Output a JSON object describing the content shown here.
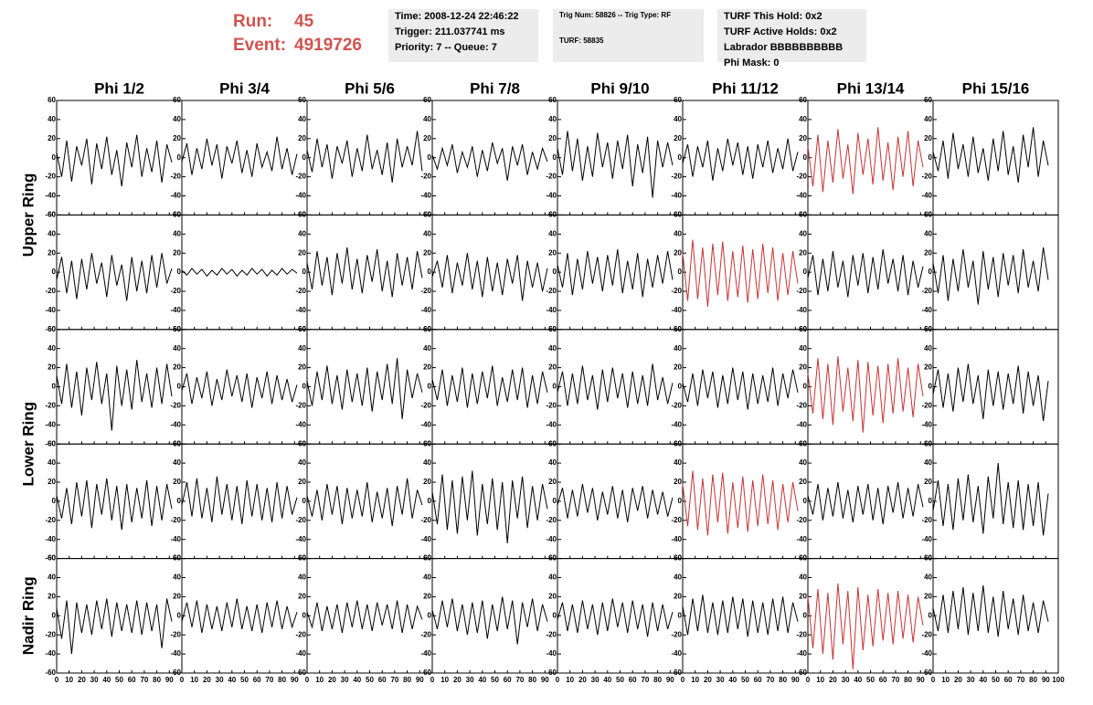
{
  "header": {
    "run_label": "Run:",
    "run": "45",
    "event_label": "Event:",
    "event": "4919726"
  },
  "info_boxes": [
    [
      "Time: 2008-12-24 22:46:22",
      "Trigger: 211.037741 ms",
      "Priority: 7 -- Queue: 7"
    ],
    [
      "Trig Num: 58826 -- Trig Type: RF",
      "TURF: 58835"
    ],
    [
      "TURF This Hold: 0x2",
      "TURF Active Holds: 0x2",
      "Labrador BBBBBBBBBB",
      "Phi Mask: 0"
    ]
  ],
  "chart_data": {
    "type": "line",
    "columns": [
      "Phi 1/2",
      "Phi 3/4",
      "Phi 5/6",
      "Phi 7/8",
      "Phi 9/10",
      "Phi 11/12",
      "Phi 13/14",
      "Phi 15/16"
    ],
    "ring_labels": [
      "Upper Ring",
      "Lower Ring",
      "Nadir Ring"
    ],
    "xlim": [
      0,
      100
    ],
    "xticks": [
      0,
      10,
      20,
      30,
      40,
      50,
      60,
      70,
      80,
      90,
      100
    ],
    "ylim": [
      -60,
      60
    ],
    "yticks": [
      -60,
      -40,
      -20,
      0,
      20,
      40,
      60
    ],
    "x": [
      0,
      4,
      8,
      12,
      16,
      20,
      24,
      28,
      32,
      36,
      40,
      44,
      48,
      52,
      56,
      60,
      64,
      68,
      72,
      76,
      80,
      84,
      88,
      92
    ],
    "panels": [
      {
        "color": "#000000",
        "values": [
          5,
          -20,
          18,
          -25,
          12,
          -8,
          20,
          -28,
          15,
          -12,
          22,
          -18,
          8,
          -30,
          16,
          -10,
          24,
          -20,
          10,
          -15,
          18,
          -26,
          14,
          -5
        ]
      },
      {
        "color": "#000000",
        "values": [
          -4,
          15,
          -18,
          10,
          -12,
          20,
          -8,
          14,
          -22,
          12,
          -6,
          18,
          -16,
          8,
          -20,
          15,
          -10,
          6,
          -14,
          22,
          -12,
          10,
          -18,
          4
        ]
      },
      {
        "color": "#000000",
        "values": [
          8,
          -15,
          20,
          -10,
          14,
          -22,
          12,
          -6,
          18,
          -20,
          10,
          -14,
          24,
          -12,
          8,
          -18,
          16,
          -26,
          20,
          -10,
          12,
          -8,
          28,
          -14
        ]
      },
      {
        "color": "#000000",
        "values": [
          3,
          -12,
          10,
          -8,
          14,
          -16,
          6,
          -10,
          12,
          -20,
          8,
          -14,
          16,
          -6,
          10,
          -24,
          12,
          -8,
          14,
          -18,
          6,
          -12,
          10,
          -4
        ]
      },
      {
        "color": "#000000",
        "values": [
          10,
          -18,
          28,
          -14,
          20,
          -24,
          12,
          -20,
          26,
          -10,
          16,
          -22,
          18,
          -12,
          24,
          -30,
          14,
          -16,
          22,
          -42,
          18,
          -10,
          16,
          -8
        ]
      },
      {
        "color": "#000000",
        "values": [
          -6,
          14,
          -20,
          12,
          -10,
          18,
          -24,
          10,
          -14,
          20,
          -8,
          16,
          -18,
          12,
          -22,
          14,
          -10,
          18,
          -16,
          10,
          -12,
          20,
          -14,
          6
        ]
      },
      {
        "color": "#c83232",
        "values": [
          12,
          -30,
          24,
          -36,
          18,
          -26,
          30,
          -22,
          14,
          -38,
          26,
          -18,
          20,
          -28,
          32,
          -24,
          16,
          -34,
          22,
          -20,
          28,
          -30,
          18,
          -10
        ]
      },
      {
        "color": "#000000",
        "values": [
          6,
          -14,
          18,
          -22,
          26,
          -12,
          14,
          -20,
          22,
          -16,
          10,
          -24,
          20,
          -14,
          28,
          -18,
          12,
          -26,
          24,
          -10,
          32,
          -20,
          18,
          -8
        ]
      },
      {
        "color": "#000000",
        "values": [
          -8,
          16,
          -22,
          12,
          -28,
          14,
          -18,
          20,
          -12,
          10,
          -26,
          18,
          -14,
          8,
          -30,
          16,
          -20,
          12,
          -22,
          18,
          -16,
          20,
          -12,
          4
        ]
      },
      {
        "color": "#000000",
        "values": [
          2,
          -3,
          4,
          -2,
          3,
          -4,
          2,
          -3,
          4,
          -2,
          3,
          -4,
          2,
          -3,
          4,
          -2,
          3,
          -4,
          2,
          -3,
          4,
          -2,
          3,
          -1
        ]
      },
      {
        "color": "#000000",
        "values": [
          10,
          -18,
          22,
          -14,
          16,
          -24,
          20,
          -12,
          26,
          -18,
          14,
          -22,
          18,
          -10,
          24,
          -20,
          12,
          -26,
          20,
          -14,
          16,
          -18,
          22,
          -6
        ]
      },
      {
        "color": "#000000",
        "values": [
          -5,
          12,
          -16,
          18,
          -22,
          10,
          -14,
          20,
          -18,
          12,
          -26,
          16,
          -20,
          10,
          -24,
          14,
          -12,
          18,
          -30,
          12,
          -16,
          10,
          -20,
          4
        ]
      },
      {
        "color": "#000000",
        "values": [
          8,
          -16,
          20,
          -24,
          14,
          -18,
          22,
          -12,
          16,
          -20,
          18,
          -14,
          24,
          -22,
          12,
          -18,
          20,
          -26,
          14,
          -16,
          18,
          -12,
          22,
          -8
        ]
      },
      {
        "color": "#c83232",
        "values": [
          20,
          -30,
          34,
          -28,
          26,
          -36,
          30,
          -24,
          32,
          -30,
          22,
          -26,
          28,
          -32,
          24,
          -28,
          30,
          -22,
          26,
          -30,
          20,
          -24,
          22,
          -12
        ]
      },
      {
        "color": "#000000",
        "values": [
          -6,
          18,
          -24,
          14,
          -20,
          22,
          -16,
          12,
          -26,
          18,
          -14,
          20,
          -22,
          16,
          -18,
          24,
          -12,
          14,
          -20,
          18,
          -24,
          12,
          -16,
          6
        ]
      },
      {
        "color": "#000000",
        "values": [
          10,
          -22,
          18,
          -30,
          14,
          -20,
          24,
          -16,
          12,
          -34,
          22,
          -18,
          16,
          -26,
          20,
          -14,
          18,
          -22,
          24,
          -16,
          12,
          -20,
          26,
          -8
        ]
      },
      {
        "color": "#000000",
        "values": [
          12,
          -18,
          24,
          -22,
          16,
          -30,
          20,
          -14,
          26,
          -18,
          14,
          -46,
          22,
          -20,
          18,
          -24,
          28,
          -16,
          14,
          -22,
          20,
          -18,
          24,
          -10
        ]
      },
      {
        "color": "#000000",
        "values": [
          -4,
          14,
          -18,
          10,
          -12,
          16,
          -20,
          8,
          -14,
          18,
          -10,
          12,
          -16,
          14,
          -22,
          10,
          -12,
          16,
          -18,
          12,
          -14,
          8,
          -16,
          2
        ]
      },
      {
        "color": "#000000",
        "values": [
          6,
          -20,
          16,
          -14,
          22,
          -18,
          12,
          -24,
          18,
          -16,
          14,
          -20,
          20,
          -26,
          16,
          -14,
          24,
          -18,
          30,
          -34,
          18,
          -12,
          14,
          -6
        ]
      },
      {
        "color": "#000000",
        "values": [
          8,
          -14,
          18,
          -20,
          12,
          -16,
          20,
          -22,
          14,
          -18,
          16,
          -12,
          22,
          -20,
          10,
          -16,
          18,
          -14,
          20,
          -22,
          12,
          -18,
          16,
          -6
        ]
      },
      {
        "color": "#000000",
        "values": [
          -6,
          16,
          -20,
          14,
          -18,
          22,
          -14,
          12,
          -24,
          18,
          -16,
          20,
          -12,
          14,
          -22,
          16,
          -18,
          12,
          -20,
          24,
          -14,
          10,
          -18,
          4
        ]
      },
      {
        "color": "#000000",
        "values": [
          4,
          -16,
          14,
          -20,
          18,
          -12,
          16,
          -22,
          12,
          -18,
          20,
          -14,
          16,
          -24,
          14,
          -18,
          12,
          -16,
          20,
          -20,
          14,
          -12,
          18,
          -6
        ]
      },
      {
        "color": "#c83232",
        "values": [
          14,
          -28,
          30,
          -34,
          24,
          -40,
          32,
          -26,
          20,
          -36,
          28,
          -48,
          26,
          -30,
          22,
          -38,
          24,
          -28,
          30,
          -26,
          20,
          -32,
          24,
          -10
        ]
      },
      {
        "color": "#000000",
        "values": [
          -8,
          18,
          -22,
          14,
          -26,
          20,
          -16,
          24,
          -18,
          12,
          -34,
          18,
          -20,
          16,
          -24,
          14,
          -18,
          22,
          -28,
          16,
          -20,
          12,
          -36,
          6
        ]
      },
      {
        "color": "#000000",
        "values": [
          6,
          -18,
          14,
          -24,
          20,
          -16,
          22,
          -28,
          18,
          -14,
          24,
          -20,
          16,
          -30,
          18,
          -22,
          14,
          -18,
          22,
          -26,
          16,
          -20,
          18,
          -8
        ]
      },
      {
        "color": "#000000",
        "values": [
          -4,
          20,
          -16,
          24,
          -18,
          14,
          -22,
          26,
          -14,
          18,
          -20,
          16,
          -24,
          22,
          -16,
          18,
          -20,
          14,
          -22,
          20,
          -18,
          16,
          -14,
          4
        ]
      },
      {
        "color": "#000000",
        "values": [
          6,
          -16,
          12,
          -20,
          18,
          -14,
          16,
          -24,
          14,
          -18,
          12,
          -16,
          20,
          -22,
          10,
          -18,
          14,
          -26,
          16,
          -14,
          24,
          -18,
          12,
          -4
        ]
      },
      {
        "color": "#000000",
        "values": [
          10,
          -24,
          28,
          -30,
          22,
          -34,
          26,
          -20,
          32,
          -36,
          18,
          -24,
          24,
          -30,
          20,
          -44,
          22,
          -18,
          26,
          -28,
          16,
          -20,
          18,
          -8
        ]
      },
      {
        "color": "#000000",
        "values": [
          -4,
          14,
          -18,
          12,
          -16,
          18,
          -12,
          14,
          -20,
          10,
          -14,
          16,
          -18,
          12,
          -22,
          14,
          -10,
          16,
          -18,
          12,
          -14,
          10,
          -16,
          4
        ]
      },
      {
        "color": "#c83232",
        "values": [
          18,
          -26,
          32,
          -30,
          24,
          -36,
          28,
          -22,
          30,
          -34,
          20,
          -28,
          26,
          -32,
          22,
          -26,
          28,
          -24,
          22,
          -30,
          18,
          -22,
          20,
          -10
        ]
      },
      {
        "color": "#000000",
        "values": [
          6,
          -14,
          18,
          -20,
          14,
          -16,
          20,
          -18,
          12,
          -22,
          16,
          -14,
          18,
          -20,
          14,
          -24,
          16,
          -12,
          20,
          -18,
          14,
          -16,
          18,
          -6
        ]
      },
      {
        "color": "#000000",
        "values": [
          -10,
          22,
          -26,
          18,
          -30,
          24,
          -20,
          28,
          -22,
          16,
          -34,
          26,
          -18,
          40,
          -24,
          20,
          -28,
          22,
          -30,
          18,
          -26,
          20,
          -36,
          8
        ]
      },
      {
        "color": "#000000",
        "values": [
          8,
          -24,
          16,
          -40,
          14,
          -18,
          12,
          -20,
          16,
          -14,
          18,
          -22,
          14,
          -16,
          12,
          -18,
          16,
          -20,
          14,
          -16,
          12,
          -34,
          18,
          -6
        ]
      },
      {
        "color": "#000000",
        "values": [
          -6,
          14,
          -12,
          16,
          -18,
          12,
          -14,
          10,
          -16,
          14,
          -12,
          18,
          -14,
          10,
          -16,
          12,
          -18,
          14,
          -12,
          16,
          -14,
          10,
          -12,
          4
        ]
      },
      {
        "color": "#000000",
        "values": [
          4,
          -12,
          14,
          -16,
          10,
          -14,
          12,
          -18,
          14,
          -12,
          16,
          -14,
          12,
          -16,
          14,
          -10,
          12,
          -14,
          16,
          -18,
          12,
          -14,
          10,
          -4
        ]
      },
      {
        "color": "#000000",
        "values": [
          6,
          -14,
          16,
          -12,
          18,
          -16,
          12,
          -20,
          14,
          -18,
          16,
          -24,
          12,
          -16,
          20,
          -14,
          16,
          -30,
          14,
          -12,
          18,
          -16,
          12,
          -6
        ]
      },
      {
        "color": "#000000",
        "values": [
          -4,
          14,
          -16,
          12,
          -18,
          16,
          -14,
          12,
          -20,
          14,
          -16,
          18,
          -12,
          14,
          -18,
          16,
          -14,
          12,
          -22,
          14,
          -16,
          12,
          -14,
          4
        ]
      },
      {
        "color": "#000000",
        "values": [
          10,
          -20,
          18,
          -16,
          22,
          -18,
          14,
          -20,
          16,
          -18,
          20,
          -14,
          18,
          -22,
          16,
          -18,
          14,
          -20,
          18,
          -16,
          20,
          -18,
          14,
          -6
        ]
      },
      {
        "color": "#c83232",
        "values": [
          20,
          -34,
          28,
          -40,
          24,
          -46,
          34,
          -30,
          26,
          -56,
          30,
          -36,
          22,
          -32,
          28,
          -26,
          24,
          -30,
          26,
          -24,
          22,
          -28,
          20,
          -10
        ]
      },
      {
        "color": "#000000",
        "values": [
          8,
          -16,
          22,
          -18,
          26,
          -14,
          30,
          -20,
          24,
          -16,
          32,
          -18,
          20,
          -22,
          26,
          -14,
          18,
          -20,
          22,
          -16,
          14,
          -18,
          16,
          -6
        ]
      }
    ]
  }
}
